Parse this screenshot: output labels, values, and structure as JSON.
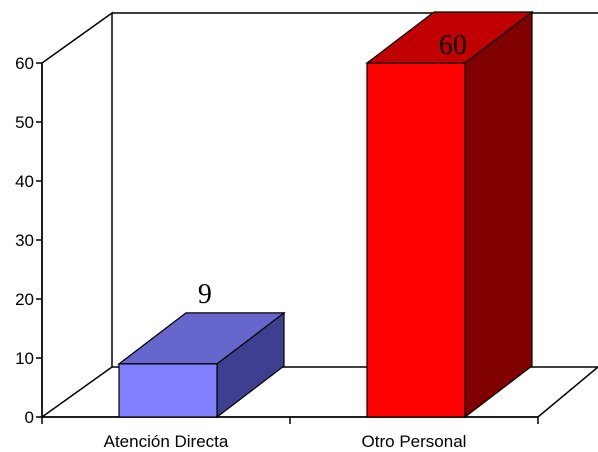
{
  "chart_data": {
    "type": "bar",
    "categories": [
      "Atención Directa",
      "Otro Personal"
    ],
    "values": [
      9,
      60
    ],
    "data_labels": [
      "9",
      "60"
    ],
    "ylim": [
      0,
      60
    ],
    "yticks": [
      "0",
      "10",
      "20",
      "30",
      "40",
      "50",
      "60"
    ],
    "title": "",
    "xlabel": "",
    "ylabel": "",
    "grid": false,
    "legend": "none",
    "three_d": true,
    "colors": [
      {
        "front": "#8080ff",
        "top": "#6666cc",
        "side": "#3f3f8f"
      },
      {
        "front": "#ff0000",
        "top": "#c00000",
        "side": "#800000"
      }
    ]
  }
}
